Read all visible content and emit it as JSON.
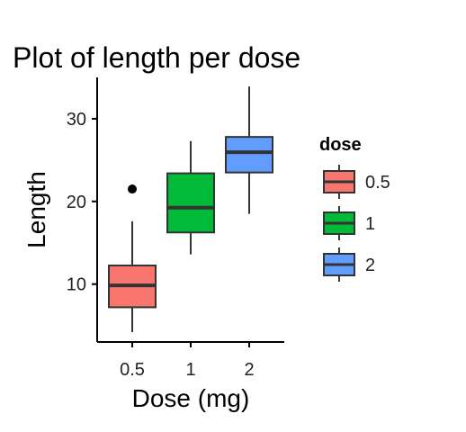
{
  "chart_data": {
    "type": "box",
    "title": "Plot of length  per dose",
    "xlabel": "Dose (mg)",
    "ylabel": "Length",
    "categories": [
      "0.5",
      "1",
      "2"
    ],
    "ylim": [
      3,
      35
    ],
    "yticks": [
      10,
      20,
      30
    ],
    "grid": false,
    "legend": {
      "title": "dose",
      "placement": "right"
    },
    "series": [
      {
        "name": "0.5",
        "color": "#F8766D",
        "min": 4.2,
        "q1": 7.2,
        "median": 9.85,
        "q3": 12.25,
        "max": 17.6,
        "outliers": [
          21.5
        ]
      },
      {
        "name": "1",
        "color": "#00BA38",
        "min": 13.6,
        "q1": 16.25,
        "median": 19.25,
        "q3": 23.4,
        "max": 27.3,
        "outliers": []
      },
      {
        "name": "2",
        "color": "#619CFF",
        "min": 18.5,
        "q1": 23.5,
        "median": 25.95,
        "q3": 27.8,
        "max": 33.9,
        "outliers": []
      }
    ]
  }
}
